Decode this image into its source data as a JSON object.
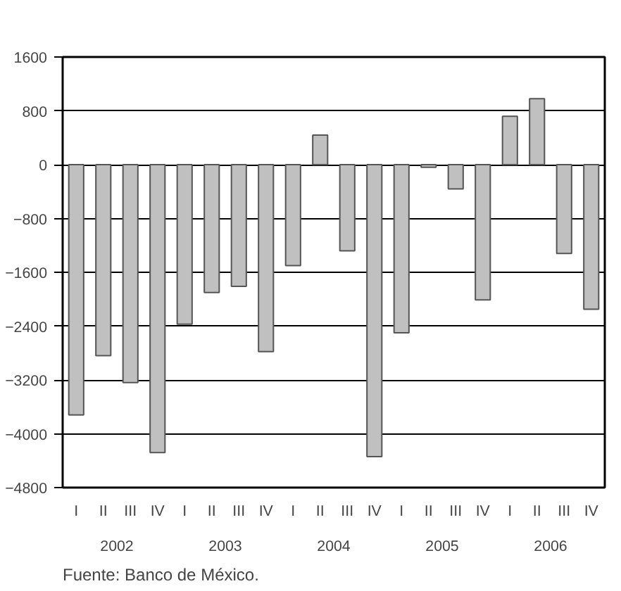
{
  "chart_data": {
    "type": "bar",
    "categories": [
      "I",
      "II",
      "III",
      "IV",
      "I",
      "II",
      "III",
      "IV",
      "I",
      "II",
      "III",
      "IV",
      "I",
      "II",
      "III",
      "IV",
      "I",
      "II",
      "III",
      "IV"
    ],
    "values": [
      -3720,
      -2840,
      -3240,
      -4280,
      -2370,
      -1900,
      -1810,
      -2780,
      -1500,
      440,
      -1280,
      -4340,
      -2500,
      -40,
      -360,
      -2010,
      720,
      980,
      -1320,
      -2150
    ],
    "color": "#c0c0c0",
    "ylim": [
      -4800,
      1600
    ],
    "yticks": [
      -4800,
      -4000,
      -3200,
      -2400,
      -1600,
      -800,
      0,
      800,
      1600
    ],
    "grid": "y",
    "annotations": [
      "2002",
      "2003",
      "2004",
      "2005",
      "2006",
      "Fuente: Banco de México."
    ]
  }
}
